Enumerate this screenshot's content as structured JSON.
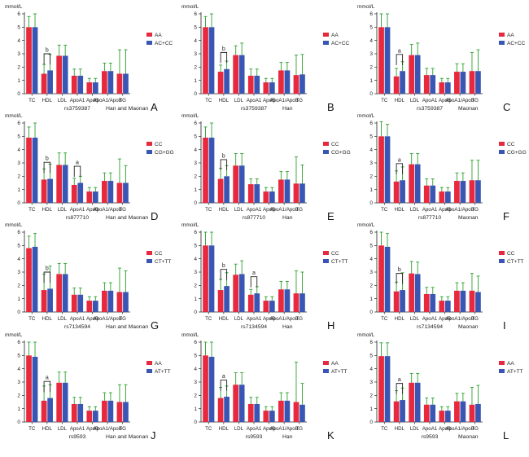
{
  "figure": {
    "y_unit": "mmol/L",
    "categories": [
      "TC",
      "HDL",
      "LDL",
      "ApoA1",
      "ApoB",
      "ApoA1/ApoB",
      "TG"
    ],
    "y_ticks": [
      "0",
      "1",
      "2",
      "3",
      "4",
      "5",
      "6"
    ],
    "colors": {
      "first": "#e8283c",
      "second": "#3a56b4",
      "error": "#2ea02e"
    }
  },
  "chart_data": [
    {
      "type": "bar",
      "panel": "A",
      "snp": "rs3759387",
      "population": "Han and Maonan",
      "ylim": [
        0,
        6
      ],
      "categories": [
        "TC",
        "HDL",
        "LDL",
        "ApoA1",
        "ApoB",
        "ApoA1/ApoB",
        "TG"
      ],
      "series": [
        {
          "name": "AA",
          "values": [
            5.0,
            1.5,
            2.85,
            1.35,
            0.85,
            1.7,
            1.5
          ],
          "errors": [
            0.8,
            0.7,
            0.8,
            0.5,
            0.3,
            0.6,
            1.8
          ]
        },
        {
          "name": "AC+CC",
          "values": [
            5.0,
            1.75,
            2.85,
            1.35,
            0.85,
            1.7,
            1.5
          ],
          "errors": [
            1.0,
            1.2,
            0.8,
            0.5,
            0.3,
            0.6,
            1.8
          ]
        }
      ],
      "brackets": [
        {
          "label": "b",
          "category": 1
        }
      ]
    },
    {
      "type": "bar",
      "panel": "B",
      "snp": "rs3759387",
      "population": "Han",
      "ylim": [
        0,
        6
      ],
      "categories": [
        "TC",
        "HDL",
        "LDL",
        "ApoA1",
        "ApoB",
        "ApoA1/ApoB",
        "TG"
      ],
      "series": [
        {
          "name": "AA",
          "values": [
            5.0,
            1.65,
            2.9,
            1.35,
            0.85,
            1.75,
            1.4
          ],
          "errors": [
            0.8,
            0.5,
            0.7,
            0.5,
            0.3,
            0.6,
            1.5
          ]
        },
        {
          "name": "AC+CC",
          "values": [
            5.0,
            1.85,
            2.9,
            1.35,
            0.85,
            1.75,
            1.45
          ],
          "errors": [
            1.0,
            0.6,
            0.9,
            0.5,
            0.3,
            0.6,
            1.5
          ]
        }
      ],
      "brackets": [
        {
          "label": "b",
          "category": 1
        }
      ]
    },
    {
      "type": "bar",
      "panel": "C",
      "snp": "rs3759387",
      "population": "Maonan",
      "ylim": [
        0,
        6
      ],
      "categories": [
        "TC",
        "HDL",
        "LDL",
        "ApoA1",
        "ApoB",
        "ApoA1/ApoB",
        "TG"
      ],
      "series": [
        {
          "name": "AA",
          "values": [
            5.0,
            1.3,
            2.9,
            1.4,
            0.85,
            1.65,
            1.7
          ],
          "errors": [
            1.0,
            0.6,
            0.8,
            0.5,
            0.3,
            0.6,
            1.4
          ]
        },
        {
          "name": "AC+CC",
          "values": [
            5.0,
            1.7,
            2.9,
            1.4,
            0.85,
            1.65,
            1.7
          ],
          "errors": [
            1.0,
            0.7,
            0.9,
            0.5,
            0.3,
            0.6,
            1.6
          ]
        }
      ],
      "brackets": [
        {
          "label": "a",
          "category": 1
        }
      ]
    },
    {
      "type": "bar",
      "panel": "D",
      "snp": "rs877710",
      "population": "Han and Maonan",
      "ylim": [
        0,
        6
      ],
      "categories": [
        "TC",
        "HDL",
        "LDL",
        "ApoA1",
        "ApoB",
        "ApoA1/ApoB",
        "TG"
      ],
      "series": [
        {
          "name": "CC",
          "values": [
            4.9,
            1.75,
            2.85,
            1.35,
            0.85,
            1.65,
            1.5
          ],
          "errors": [
            0.8,
            0.8,
            0.9,
            0.5,
            0.3,
            0.6,
            1.8
          ]
        },
        {
          "name": "CG+GG",
          "values": [
            4.9,
            1.8,
            2.85,
            1.5,
            0.85,
            1.65,
            1.5
          ],
          "errors": [
            1.1,
            1.1,
            0.9,
            0.5,
            0.3,
            0.6,
            1.3
          ]
        }
      ],
      "brackets": [
        {
          "label": "b",
          "category": 1
        },
        {
          "label": "a",
          "category": 3
        }
      ]
    },
    {
      "type": "bar",
      "panel": "E",
      "snp": "rs877710",
      "population": "Han",
      "ylim": [
        0,
        6
      ],
      "categories": [
        "TC",
        "HDL",
        "LDL",
        "ApoA1",
        "ApoB",
        "ApoA1/ApoB",
        "TG"
      ],
      "series": [
        {
          "name": "CC",
          "values": [
            4.9,
            1.8,
            2.8,
            1.4,
            0.85,
            1.75,
            1.45
          ],
          "errors": [
            0.8,
            0.8,
            0.9,
            0.4,
            0.3,
            0.6,
            2.0
          ]
        },
        {
          "name": "CG+GG",
          "values": [
            4.9,
            2.0,
            2.8,
            1.4,
            0.85,
            1.75,
            1.45
          ],
          "errors": [
            1.1,
            0.8,
            0.9,
            0.4,
            0.3,
            0.6,
            1.4
          ]
        }
      ],
      "brackets": [
        {
          "label": "b",
          "category": 1
        }
      ]
    },
    {
      "type": "bar",
      "panel": "F",
      "snp": "rs877710",
      "population": "Maonan",
      "ylim": [
        0,
        6
      ],
      "categories": [
        "TC",
        "HDL",
        "LDL",
        "ApoA1",
        "ApoB",
        "ApoA1/ApoB",
        "TG"
      ],
      "series": [
        {
          "name": "CC",
          "values": [
            5.0,
            1.6,
            2.9,
            1.3,
            0.85,
            1.65,
            1.7
          ],
          "errors": [
            1.1,
            0.8,
            0.8,
            0.5,
            0.3,
            0.6,
            1.5
          ]
        },
        {
          "name": "CG+GG",
          "values": [
            5.0,
            1.7,
            2.9,
            1.3,
            0.85,
            1.65,
            1.7
          ],
          "errors": [
            0.9,
            1.0,
            0.8,
            0.5,
            0.3,
            0.6,
            1.5
          ]
        }
      ],
      "brackets": [
        {
          "label": "a",
          "category": 1
        }
      ]
    },
    {
      "type": "bar",
      "panel": "G",
      "snp": "rs7134594",
      "population": "Han and Maonan",
      "ylim": [
        0,
        6
      ],
      "categories": [
        "TC",
        "HDL",
        "LDL",
        "ApoA1",
        "ApoB",
        "ApoA1/ApoB",
        "TG"
      ],
      "series": [
        {
          "name": "CC",
          "values": [
            4.8,
            1.65,
            2.85,
            1.3,
            0.85,
            1.6,
            1.5
          ],
          "errors": [
            0.9,
            1.2,
            0.8,
            0.5,
            0.3,
            0.6,
            1.8
          ]
        },
        {
          "name": "CT+TT",
          "values": [
            4.9,
            1.75,
            2.85,
            1.3,
            0.85,
            1.6,
            1.5
          ],
          "errors": [
            1.0,
            1.7,
            0.8,
            0.5,
            0.3,
            0.6,
            1.6
          ]
        }
      ],
      "brackets": [
        {
          "label": "b",
          "category": 1
        }
      ]
    },
    {
      "type": "bar",
      "panel": "H",
      "snp": "rs7134594",
      "population": "Han",
      "ylim": [
        0,
        6
      ],
      "categories": [
        "TC",
        "HDL",
        "LDL",
        "ApoA1",
        "ApoB",
        "ApoA1/ApoB",
        "TG"
      ],
      "series": [
        {
          "name": "CC",
          "values": [
            5.0,
            1.65,
            2.8,
            1.3,
            0.85,
            1.7,
            1.4
          ],
          "errors": [
            1.0,
            0.8,
            0.8,
            0.4,
            0.3,
            0.6,
            1.7
          ]
        },
        {
          "name": "CT+TT",
          "values": [
            5.0,
            1.95,
            2.85,
            1.4,
            0.85,
            1.7,
            1.4
          ],
          "errors": [
            1.0,
            1.0,
            1.0,
            0.5,
            0.3,
            0.6,
            1.6
          ]
        }
      ],
      "brackets": [
        {
          "label": "b",
          "category": 1
        },
        {
          "label": "a",
          "category": 3
        }
      ]
    },
    {
      "type": "bar",
      "panel": "I",
      "snp": "rs7134594",
      "population": "Maonan",
      "ylim": [
        0,
        6
      ],
      "categories": [
        "TC",
        "HDL",
        "LDL",
        "ApoA1",
        "ApoB",
        "ApoA1/ApoB",
        "TG"
      ],
      "series": [
        {
          "name": "CC",
          "values": [
            5.0,
            1.55,
            2.9,
            1.35,
            0.85,
            1.6,
            1.6
          ],
          "errors": [
            1.0,
            0.7,
            0.9,
            0.5,
            0.3,
            0.6,
            1.3
          ]
        },
        {
          "name": "CT+TT",
          "values": [
            4.9,
            1.65,
            2.85,
            1.35,
            0.85,
            1.6,
            1.5
          ],
          "errors": [
            1.0,
            1.3,
            0.9,
            0.5,
            0.3,
            0.6,
            1.2
          ]
        }
      ],
      "brackets": [
        {
          "label": "b",
          "category": 1
        }
      ]
    },
    {
      "type": "bar",
      "panel": "J",
      "snp": "rs9593",
      "population": "Han and Maonan",
      "ylim": [
        0,
        6
      ],
      "categories": [
        "TC",
        "HDL",
        "LDL",
        "ApoA1",
        "ApoB",
        "ApoA1/ApoB",
        "TG"
      ],
      "series": [
        {
          "name": "AA",
          "values": [
            5.0,
            1.6,
            2.95,
            1.35,
            0.85,
            1.6,
            1.5
          ],
          "errors": [
            1.0,
            1.1,
            0.8,
            0.5,
            0.3,
            0.6,
            1.3
          ]
        },
        {
          "name": "AT+TT",
          "values": [
            4.9,
            1.8,
            2.95,
            1.35,
            0.85,
            1.6,
            1.5
          ],
          "errors": [
            1.1,
            1.0,
            0.8,
            0.5,
            0.3,
            0.6,
            1.3
          ]
        }
      ],
      "brackets": [
        {
          "label": "a",
          "category": 1
        }
      ]
    },
    {
      "type": "bar",
      "panel": "K",
      "snp": "rs9593",
      "population": "Han",
      "ylim": [
        0,
        6
      ],
      "categories": [
        "TC",
        "HDL",
        "LDL",
        "ApoA1",
        "ApoB",
        "ApoA1/ApoB",
        "TG"
      ],
      "series": [
        {
          "name": "AA",
          "values": [
            5.0,
            1.8,
            2.8,
            1.35,
            0.85,
            1.6,
            1.5
          ],
          "errors": [
            1.0,
            0.8,
            0.9,
            0.5,
            0.3,
            0.6,
            3.0
          ]
        },
        {
          "name": "AT+TT",
          "values": [
            4.9,
            1.9,
            2.8,
            1.35,
            0.85,
            1.6,
            1.3
          ],
          "errors": [
            1.1,
            0.8,
            0.9,
            0.5,
            0.3,
            0.6,
            1.6
          ]
        }
      ],
      "brackets": [
        {
          "label": "a",
          "category": 1
        }
      ]
    },
    {
      "type": "bar",
      "panel": "L",
      "snp": "rs9593",
      "population": "Maonan",
      "ylim": [
        0,
        6
      ],
      "categories": [
        "TC",
        "HDL",
        "LDL",
        "ApoA1",
        "ApoB",
        "ApoA1/ApoB",
        "TG"
      ],
      "series": [
        {
          "name": "AA",
          "values": [
            4.95,
            1.55,
            2.95,
            1.3,
            0.85,
            1.55,
            1.3
          ],
          "errors": [
            1.0,
            0.8,
            0.7,
            0.5,
            0.3,
            0.6,
            1.3
          ]
        },
        {
          "name": "AT+TT",
          "values": [
            4.95,
            1.65,
            2.95,
            1.3,
            0.85,
            1.55,
            1.35
          ],
          "errors": [
            1.0,
            0.9,
            0.7,
            0.5,
            0.3,
            0.6,
            1.4
          ]
        }
      ],
      "brackets": [
        {
          "label": "a",
          "category": 1
        }
      ]
    }
  ]
}
